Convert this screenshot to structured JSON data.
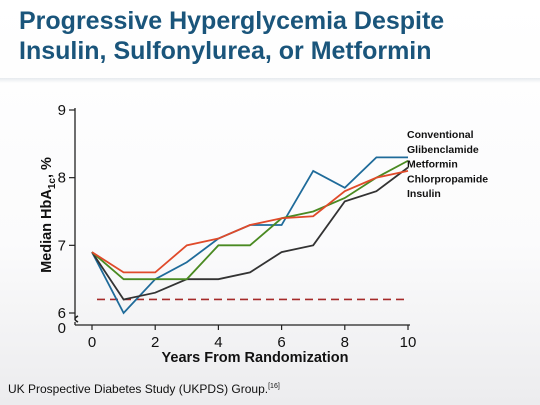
{
  "title_line1": "Progressive Hyperglycemia Despite",
  "title_line2": "Insulin, Sulfonylurea, or Metformin",
  "footer_text": "UK Prospective Diabetes Study (UKPDS) Group.",
  "footer_ref": "[16]",
  "chart_data": {
    "type": "line",
    "xlabel": "Years From Randomization",
    "ylabel_main": "Median HbA",
    "ylabel_sub": "1c",
    "ylabel_tail": ", %",
    "xlim": [
      0,
      10
    ],
    "ylim": [
      6,
      9
    ],
    "x_ticks": [
      "0",
      "2",
      "4",
      "6",
      "8",
      "10"
    ],
    "y_ticks": [
      "6",
      "7",
      "8",
      "9"
    ],
    "y_zero_label": "0",
    "grid": false,
    "legend_position": "right",
    "reference_line": {
      "y": 6.2,
      "style": "dashed",
      "color": "#a52a2a"
    },
    "x": [
      0,
      1,
      2,
      3,
      4,
      5,
      6,
      7,
      8,
      9,
      10
    ],
    "series": [
      {
        "name": "Conventional",
        "color": "#1f6b9a",
        "values": [
          6.9,
          6.0,
          6.5,
          6.75,
          7.1,
          7.3,
          7.3,
          8.1,
          7.85,
          8.3,
          8.3
        ]
      },
      {
        "name": "Glibenclamide",
        "color": "#333333",
        "values": [
          6.9,
          6.2,
          6.3,
          6.5,
          6.5,
          6.6,
          6.9,
          7.0,
          7.65,
          7.8,
          8.15
        ]
      },
      {
        "name": "Metformin",
        "color": "#4a8a22",
        "values": [
          6.9,
          6.5,
          6.5,
          6.5,
          7.0,
          7.0,
          7.4,
          7.5,
          7.7,
          8.0,
          8.25
        ]
      },
      {
        "name": "Chlorpropamide",
        "color": "#e04a2a",
        "values": [
          6.9,
          6.6,
          6.6,
          7.0,
          7.1,
          7.3,
          7.4,
          7.43,
          7.8,
          8.0,
          8.1
        ]
      },
      {
        "name": "Insulin",
        "color": "#111111",
        "legend_only": true
      }
    ]
  }
}
